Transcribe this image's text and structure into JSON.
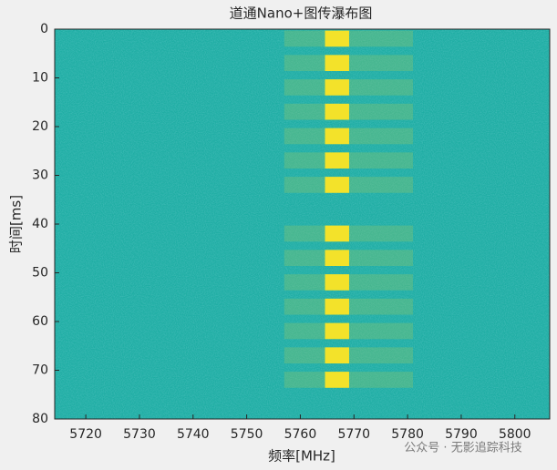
{
  "chart_data": {
    "type": "waterfall",
    "title": "道通Nano+图传瀑布图",
    "x_label": "频率[MHz]",
    "y_label": "时间[ms]",
    "xlim": [
      5714.2,
      5806.5
    ],
    "xticks": [
      5720,
      5730,
      5740,
      5750,
      5760,
      5770,
      5780,
      5790,
      5800
    ],
    "ylim": [
      0,
      80
    ],
    "y_inverted": true,
    "yticks": [
      0,
      10,
      20,
      30,
      40,
      50,
      60,
      70,
      80
    ],
    "background_color": "#1fae a4",
    "burst_color": "#f3e22a",
    "sideband_color": "#8cc66a",
    "burst_freq": [
      5764.6,
      5769.1
    ],
    "sideband_freq": [
      5757,
      5781
    ],
    "bursts": [
      {
        "start": 0.3,
        "end": 3.6
      },
      {
        "start": 5.3,
        "end": 8.6
      },
      {
        "start": 10.3,
        "end": 13.6
      },
      {
        "start": 15.3,
        "end": 18.6
      },
      {
        "start": 20.3,
        "end": 23.6
      },
      {
        "start": 25.3,
        "end": 28.6
      },
      {
        "start": 30.3,
        "end": 33.6
      },
      {
        "start": 40.3,
        "end": 43.6
      },
      {
        "start": 45.3,
        "end": 48.6
      },
      {
        "start": 50.3,
        "end": 53.6
      },
      {
        "start": 55.3,
        "end": 58.6
      },
      {
        "start": 60.3,
        "end": 63.6
      },
      {
        "start": 65.3,
        "end": 68.6
      },
      {
        "start": 70.3,
        "end": 73.6
      }
    ],
    "watermark": "公众号 · 无影追踪科技"
  }
}
